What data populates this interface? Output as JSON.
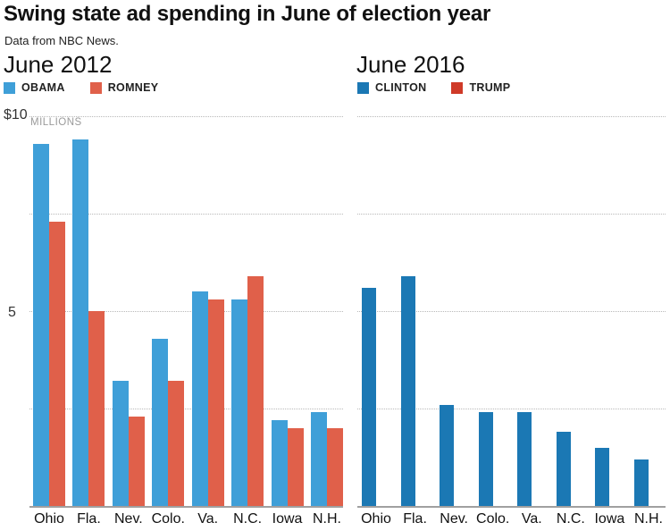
{
  "header": {
    "title": "Swing state ad spending in June of election year",
    "subtitle": "Data from NBC News."
  },
  "axis": {
    "top_tick_label": "$10",
    "unit_label": "MILLIONS",
    "mid_tick_label": "5",
    "gridlines": [
      10,
      7.5,
      5,
      2.5
    ],
    "ymax": 10
  },
  "colors": {
    "obama": "#3f9fd8",
    "romney": "#e0604a",
    "clinton": "#1b78b4",
    "trump": "#cf3a28",
    "baseline": "#a0a0a0",
    "gridline": "#b9b9b9"
  },
  "chart_data": [
    {
      "type": "bar",
      "title": "June 2012",
      "categories": [
        "Ohio",
        "Fla.",
        "Nev.",
        "Colo.",
        "Va.",
        "N.C.",
        "Iowa",
        "N.H."
      ],
      "series": [
        {
          "name": "OBAMA",
          "color": "#3f9fd8",
          "values": [
            9.3,
            9.4,
            3.2,
            4.3,
            5.5,
            5.3,
            2.2,
            2.4
          ]
        },
        {
          "name": "ROMNEY",
          "color": "#e0604a",
          "values": [
            7.3,
            5.0,
            2.3,
            3.2,
            5.3,
            5.9,
            2.0,
            2.0
          ]
        }
      ],
      "xlabel": "",
      "ylabel": "MILLIONS",
      "ylim": [
        0,
        10
      ],
      "grid": "dotted horizontal",
      "legend_position": "top-left"
    },
    {
      "type": "bar",
      "title": "June 2016",
      "categories": [
        "Ohio",
        "Fla.",
        "Nev.",
        "Colo.",
        "Va.",
        "N.C.",
        "Iowa",
        "N.H."
      ],
      "series": [
        {
          "name": "CLINTON",
          "color": "#1b78b4",
          "values": [
            5.6,
            5.9,
            2.6,
            2.4,
            2.4,
            1.9,
            1.5,
            1.2
          ]
        },
        {
          "name": "TRUMP",
          "color": "#cf3a28",
          "values": [
            0,
            0,
            0,
            0,
            0,
            0,
            0,
            0
          ]
        }
      ],
      "xlabel": "",
      "ylabel": "MILLIONS",
      "ylim": [
        0,
        10
      ],
      "grid": "dotted horizontal",
      "legend_position": "top-left"
    }
  ]
}
